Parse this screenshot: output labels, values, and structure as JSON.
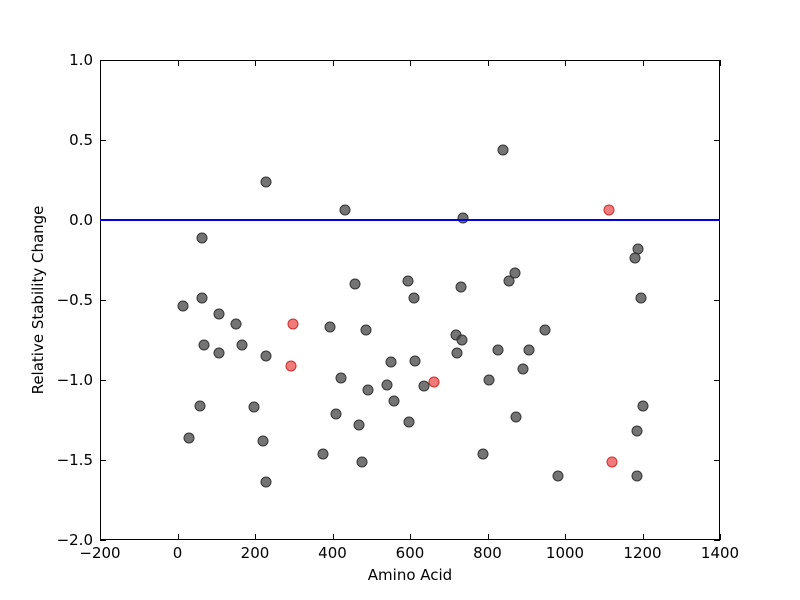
{
  "chart_data": {
    "type": "scatter",
    "title": "",
    "xlabel": "Amino Acid",
    "ylabel": "Relative Stability Change",
    "xlim": [
      -200,
      1400
    ],
    "ylim": [
      -2.0,
      1.0
    ],
    "grid": false,
    "legend": null,
    "xticks": {
      "values": [
        -200,
        0,
        200,
        400,
        600,
        800,
        1000,
        1200,
        1400
      ],
      "labels": [
        "−200",
        "0",
        "200",
        "400",
        "600",
        "800",
        "1000",
        "1200",
        "1400"
      ]
    },
    "yticks": {
      "values": [
        1.0,
        0.5,
        0.0,
        -0.5,
        -1.0,
        -1.5,
        -2.0
      ],
      "labels": [
        "1.0",
        "0.5",
        "0.0",
        "−0.5",
        "−1.0",
        "−1.5",
        "−2.0"
      ]
    },
    "hline": {
      "y": 0.0,
      "color": "#0000ee"
    },
    "marker_size": 11,
    "series": [
      {
        "name": "gray",
        "fill": "rgba(77,77,77,0.78)",
        "edge": "rgba(38,38,38,0.8)",
        "points": [
          [
            228,
            0.24
          ],
          [
            63,
            -0.11
          ],
          [
            840,
            0.44
          ],
          [
            432,
            0.06
          ],
          [
            737,
            0.01
          ],
          [
            14,
            -0.54
          ],
          [
            63,
            -0.49
          ],
          [
            107,
            -0.59
          ],
          [
            151,
            -0.65
          ],
          [
            458,
            -0.4
          ],
          [
            595,
            -0.38
          ],
          [
            610,
            -0.49
          ],
          [
            732,
            -0.42
          ],
          [
            871,
            -0.33
          ],
          [
            856,
            -0.38
          ],
          [
            1188,
            -0.18
          ],
          [
            1181,
            -0.24
          ],
          [
            1196,
            -0.49
          ],
          [
            394,
            -0.67
          ],
          [
            486,
            -0.69
          ],
          [
            719,
            -0.72
          ],
          [
            734,
            -0.75
          ],
          [
            721,
            -0.83
          ],
          [
            948,
            -0.69
          ],
          [
            68,
            -0.78
          ],
          [
            107,
            -0.83
          ],
          [
            166,
            -0.78
          ],
          [
            228,
            -0.85
          ],
          [
            827,
            -0.81
          ],
          [
            907,
            -0.81
          ],
          [
            551,
            -0.89
          ],
          [
            613,
            -0.88
          ],
          [
            892,
            -0.93
          ],
          [
            422,
            -0.99
          ],
          [
            492,
            -1.06
          ],
          [
            540,
            -1.03
          ],
          [
            636,
            -1.04
          ],
          [
            558,
            -1.13
          ],
          [
            804,
            -1.0
          ],
          [
            58,
            -1.16
          ],
          [
            197,
            -1.17
          ],
          [
            30,
            -1.36
          ],
          [
            221,
            -1.38
          ],
          [
            228,
            -1.64
          ],
          [
            409,
            -1.21
          ],
          [
            468,
            -1.28
          ],
          [
            597,
            -1.26
          ],
          [
            873,
            -1.23
          ],
          [
            376,
            -1.46
          ],
          [
            475,
            -1.51
          ],
          [
            789,
            -1.46
          ],
          [
            1201,
            -1.16
          ],
          [
            1186,
            -1.32
          ],
          [
            982,
            -1.6
          ],
          [
            1186,
            -1.6
          ]
        ]
      },
      {
        "name": "red",
        "fill": "rgba(235,90,90,0.8)",
        "edge": "rgba(201,33,33,0.85)",
        "points": [
          [
            298,
            -0.65
          ],
          [
            293,
            -0.91
          ],
          [
            662,
            -1.01
          ],
          [
            1114,
            0.06
          ],
          [
            1121,
            -1.51
          ]
        ]
      }
    ]
  }
}
